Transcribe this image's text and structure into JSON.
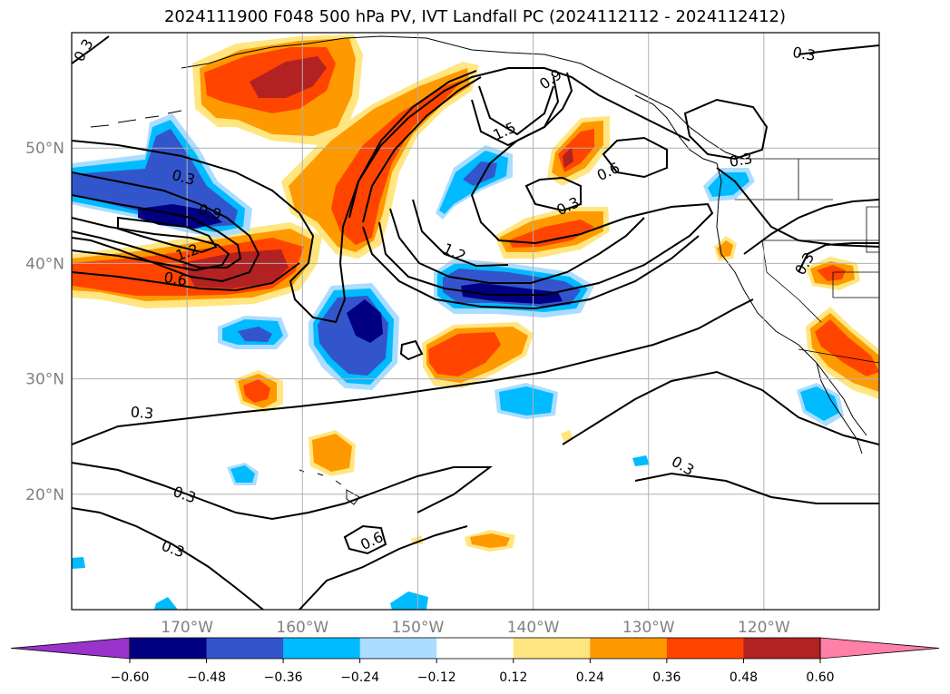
{
  "title": "2024111900 F048 500 hPa PV, IVT Landfall PC (2024112112 - 2024112412)",
  "map": {
    "lon_range": [
      -180,
      -110
    ],
    "lat_range": [
      10,
      60
    ],
    "lat_ticks": [
      {
        "value": 50,
        "label": "50°N"
      },
      {
        "value": 40,
        "label": "40°N"
      },
      {
        "value": 30,
        "label": "30°N"
      },
      {
        "value": 20,
        "label": "20°N"
      }
    ],
    "lon_ticks": [
      {
        "value": -170,
        "label": "170°W"
      },
      {
        "value": -160,
        "label": "160°W"
      },
      {
        "value": -150,
        "label": "150°W"
      },
      {
        "value": -140,
        "label": "140°W"
      },
      {
        "value": -130,
        "label": "130°W"
      },
      {
        "value": -120,
        "label": "120°W"
      }
    ],
    "gridlines": true,
    "contour_labels": [
      {
        "text": "0.3",
        "lon": -179,
        "lat": 58.5,
        "angle": -60
      },
      {
        "text": "0.3",
        "lon": -170.3,
        "lat": 47.5,
        "angle": 15
      },
      {
        "text": "0.9",
        "lon": -168,
        "lat": 44.5,
        "angle": 15
      },
      {
        "text": "1.2",
        "lon": -170,
        "lat": 41,
        "angle": -20
      },
      {
        "text": "0.6",
        "lon": -171,
        "lat": 38.7,
        "angle": 10
      },
      {
        "text": "1.5",
        "lon": -142.5,
        "lat": 51.5,
        "angle": -25
      },
      {
        "text": "0.9",
        "lon": -138.5,
        "lat": 56,
        "angle": -35
      },
      {
        "text": "0.6",
        "lon": -133.5,
        "lat": 48,
        "angle": -25
      },
      {
        "text": "0.3",
        "lon": -122,
        "lat": 49,
        "angle": -10
      },
      {
        "text": "0.3",
        "lon": -137,
        "lat": 45,
        "angle": -25
      },
      {
        "text": "1.2",
        "lon": -146.8,
        "lat": 41,
        "angle": 25
      },
      {
        "text": "0.3",
        "lon": -116.5,
        "lat": 40,
        "angle": -60
      },
      {
        "text": "0.3",
        "lon": -116.5,
        "lat": 58.2,
        "angle": 10
      },
      {
        "text": "0.3",
        "lon": -173.9,
        "lat": 27.1,
        "angle": 5
      },
      {
        "text": "0.3",
        "lon": -127,
        "lat": 22.5,
        "angle": 30
      },
      {
        "text": "0.3",
        "lon": -170.2,
        "lat": 20,
        "angle": 20
      },
      {
        "text": "0.3",
        "lon": -171.2,
        "lat": 15.3,
        "angle": 20
      },
      {
        "text": "0.6",
        "lon": -154,
        "lat": 16,
        "angle": -25
      }
    ]
  },
  "colorbar": {
    "levels": [
      "−0.60",
      "−0.48",
      "−0.36",
      "−0.24",
      "−0.12",
      "0.12",
      "0.24",
      "0.36",
      "0.48",
      "0.60"
    ],
    "colors": [
      "#9933cc",
      "#000080",
      "#3355cc",
      "#00bbff",
      "#aaddff",
      "#ffffff",
      "#ffe680",
      "#ff9900",
      "#ff4400",
      "#b22222",
      "#ff80a8"
    ],
    "extend": "both"
  },
  "shading_colors": {
    "neg1": "#aaddff",
    "neg2": "#00bbff",
    "neg3": "#3355cc",
    "neg4": "#000080",
    "pos1": "#ffe680",
    "pos2": "#ff9900",
    "pos3": "#ff4400",
    "pos4": "#b22222"
  }
}
